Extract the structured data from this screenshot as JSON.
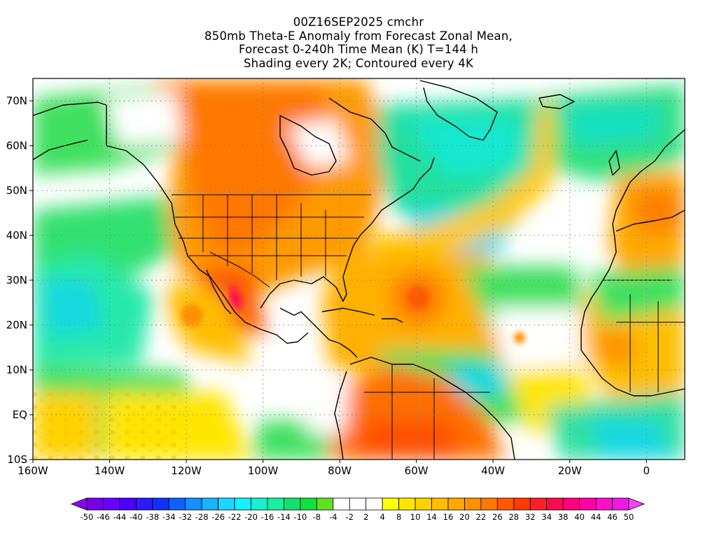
{
  "title": {
    "lines": [
      "00Z16SEP2025 cmchr",
      "850mb Theta-E Anomaly from Forecast Zonal Mean,",
      "Forecast 0-240h Time Mean (K) T=144 h",
      "Shading every 2K; Contoured every 4K"
    ]
  },
  "map": {
    "lon_range": [
      -160,
      10
    ],
    "lat_range": [
      -10,
      75
    ],
    "lon_ticks": [
      "160W",
      "140W",
      "120W",
      "100W",
      "80W",
      "60W",
      "40W",
      "20W",
      "0"
    ],
    "lat_ticks": [
      "10S",
      "EQ",
      "10N",
      "20N",
      "30N",
      "40N",
      "50N",
      "60N",
      "70N"
    ]
  },
  "colorbar": {
    "labels": [
      "-50",
      "-46",
      "-44",
      "-40",
      "-38",
      "-34",
      "-32",
      "-28",
      "-26",
      "-22",
      "-20",
      "-16",
      "-14",
      "-10",
      "-8",
      "-4",
      "-2",
      "2",
      "4",
      "8",
      "10",
      "14",
      "16",
      "20",
      "22",
      "26",
      "28",
      "32",
      "34",
      "38",
      "40",
      "44",
      "46",
      "50"
    ],
    "colors": [
      "#7a00e6",
      "#6a00ff",
      "#4d00ff",
      "#2e1aff",
      "#1030ff",
      "#1060ff",
      "#1490ff",
      "#18b4ff",
      "#18d8ff",
      "#14f0ff",
      "#18f0d0",
      "#18f0a0",
      "#14e070",
      "#10e040",
      "#60e020",
      "#ffffff",
      "#ffffff",
      "#ffffff",
      "#ffff00",
      "#ffe600",
      "#ffd200",
      "#ffbe00",
      "#ffa800",
      "#ff9000",
      "#ff7800",
      "#ff5a00",
      "#ff3c00",
      "#ff1e28",
      "#ff0a50",
      "#ff0080",
      "#ff00a8",
      "#ff10c8",
      "#f018e6"
    ],
    "left_arrow_color": "#8a00ff",
    "right_arrow_color": "#ff40ff"
  }
}
